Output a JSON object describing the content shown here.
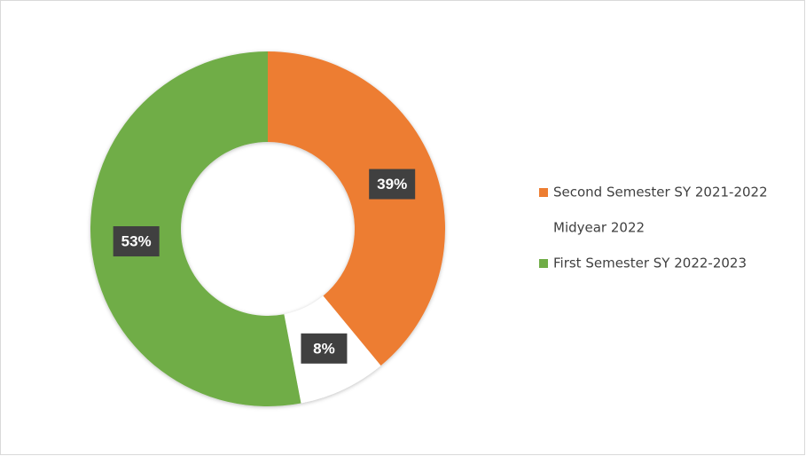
{
  "chart_data": {
    "type": "donut",
    "categories": [
      "Second Semester SY 2021-2022",
      "Midyear 2022",
      "First Semester SY 2022-2023"
    ],
    "values": [
      39,
      8,
      53
    ],
    "value_labels": [
      "39%",
      "8%",
      "53%"
    ],
    "colors": [
      "#ed7d31",
      "#ffffff",
      "#70ad47"
    ],
    "legend": "right"
  }
}
